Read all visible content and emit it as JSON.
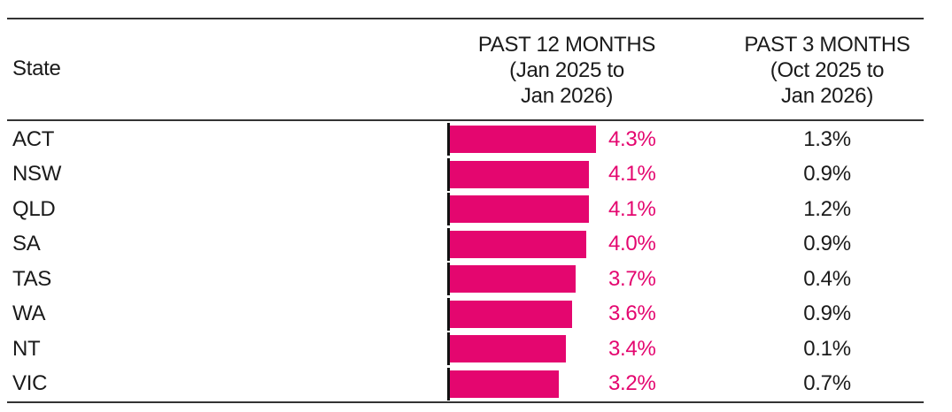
{
  "table": {
    "header": {
      "state": "State",
      "past12_lines": [
        "PAST 12 MONTHS",
        "(Jan 2025 to",
        "Jan 2026)"
      ],
      "past3_lines": [
        "PAST 3 MONTHS",
        "(Oct 2025 to",
        "Jan 2026)"
      ]
    },
    "rows": [
      {
        "state": "ACT",
        "past12_label": "4.3%",
        "past12_value": 4.3,
        "past3_label": "1.3%"
      },
      {
        "state": "NSW",
        "past12_label": "4.1%",
        "past12_value": 4.1,
        "past3_label": "0.9%"
      },
      {
        "state": "QLD",
        "past12_label": "4.1%",
        "past12_value": 4.1,
        "past3_label": "1.2%"
      },
      {
        "state": "SA",
        "past12_label": "4.0%",
        "past12_value": 4.0,
        "past3_label": "0.9%"
      },
      {
        "state": "TAS",
        "past12_label": "3.7%",
        "past12_value": 3.7,
        "past3_label": "0.4%"
      },
      {
        "state": "WA",
        "past12_label": "3.6%",
        "past12_value": 3.6,
        "past3_label": "0.9%"
      },
      {
        "state": "NT",
        "past12_label": "3.4%",
        "past12_value": 3.4,
        "past3_label": "0.1%"
      },
      {
        "state": "VIC",
        "past12_label": "3.2%",
        "past12_value": 3.2,
        "past3_label": "0.7%"
      }
    ]
  },
  "chart_data": {
    "type": "bar",
    "orientation": "horizontal",
    "categories": [
      "ACT",
      "NSW",
      "QLD",
      "SA",
      "TAS",
      "WA",
      "NT",
      "VIC"
    ],
    "series": [
      {
        "name": "PAST 12 MONTHS (Jan 2025 to Jan 2026)",
        "values": [
          4.3,
          4.1,
          4.1,
          4.0,
          3.7,
          3.6,
          3.4,
          3.2
        ],
        "rendered_as": "bars with value labels"
      },
      {
        "name": "PAST 3 MONTHS (Oct 2025 to Jan 2026)",
        "values": [
          1.3,
          0.9,
          1.2,
          0.9,
          0.4,
          0.9,
          0.1,
          0.7
        ],
        "rendered_as": "text column"
      }
    ],
    "title": "",
    "xlabel": "",
    "ylabel": "State",
    "xlim": [
      0,
      4.5
    ],
    "grid": false,
    "legend_position": "column-headers",
    "bar_color": "#E4066F",
    "value_label_color": "#E4066F",
    "text_color": "#1a1a1a",
    "rule_color": "#333333"
  }
}
